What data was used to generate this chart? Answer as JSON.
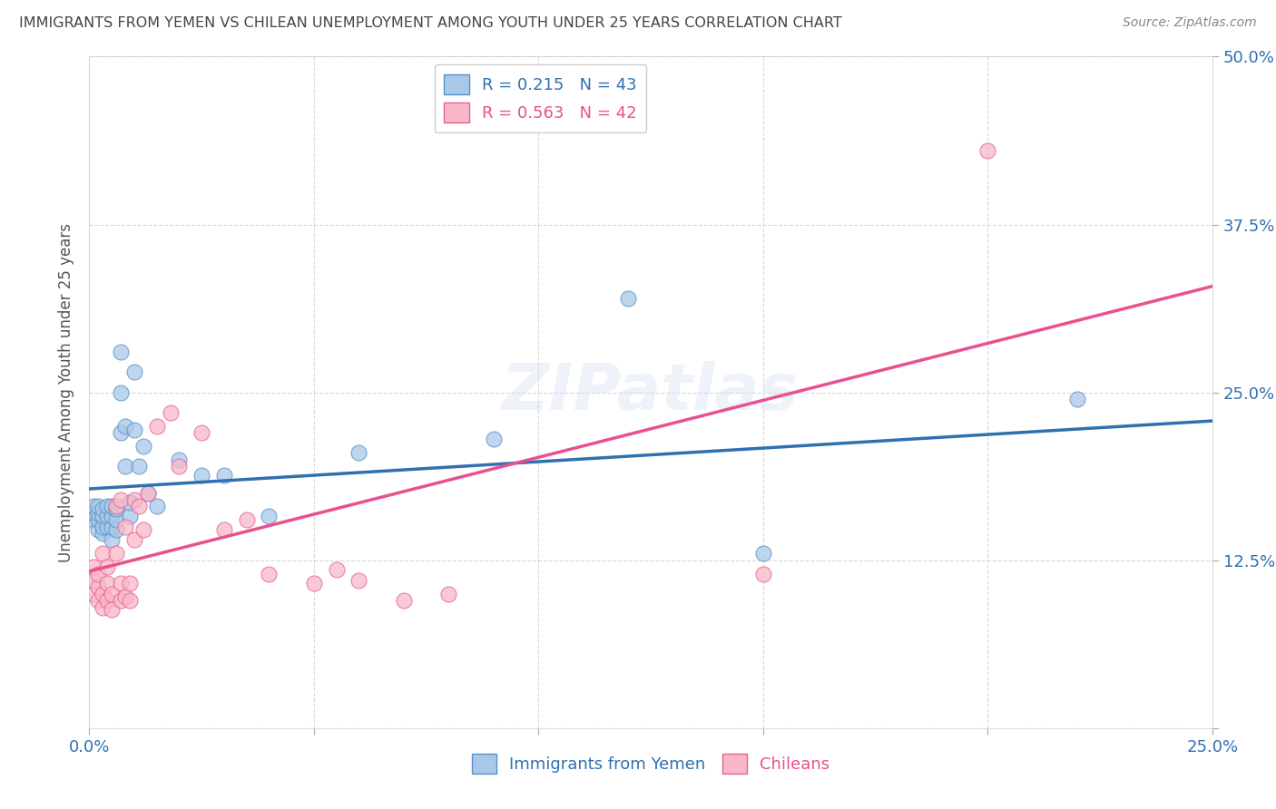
{
  "title": "IMMIGRANTS FROM YEMEN VS CHILEAN UNEMPLOYMENT AMONG YOUTH UNDER 25 YEARS CORRELATION CHART",
  "source": "Source: ZipAtlas.com",
  "ylabel": "Unemployment Among Youth under 25 years",
  "xlim": [
    0.0,
    0.25
  ],
  "ylim": [
    0.0,
    0.5
  ],
  "xticks": [
    0.0,
    0.05,
    0.1,
    0.15,
    0.2,
    0.25
  ],
  "yticks": [
    0.0,
    0.125,
    0.25,
    0.375,
    0.5
  ],
  "xticklabels": [
    "0.0%",
    "",
    "",
    "",
    "",
    "25.0%"
  ],
  "yticklabels_right": [
    "",
    "12.5%",
    "25.0%",
    "37.5%",
    "50.0%"
  ],
  "blue_color": "#a8c8e8",
  "pink_color": "#f8b8c8",
  "blue_edge_color": "#5590c8",
  "pink_edge_color": "#e86090",
  "blue_line_color": "#3070b0",
  "pink_line_color": "#e85090",
  "legend_text_color_blue": "#3070b0",
  "legend_text_color_pink": "#e85090",
  "title_color": "#444444",
  "R_blue": 0.215,
  "N_blue": 43,
  "R_pink": 0.563,
  "N_pink": 42,
  "blue_scatter_x": [
    0.001,
    0.001,
    0.001,
    0.002,
    0.002,
    0.002,
    0.002,
    0.003,
    0.003,
    0.003,
    0.003,
    0.004,
    0.004,
    0.004,
    0.005,
    0.005,
    0.005,
    0.005,
    0.006,
    0.006,
    0.006,
    0.007,
    0.007,
    0.007,
    0.008,
    0.008,
    0.009,
    0.009,
    0.01,
    0.01,
    0.011,
    0.012,
    0.013,
    0.015,
    0.02,
    0.025,
    0.03,
    0.04,
    0.06,
    0.09,
    0.12,
    0.15,
    0.22
  ],
  "blue_scatter_y": [
    0.155,
    0.16,
    0.165,
    0.148,
    0.155,
    0.16,
    0.165,
    0.145,
    0.15,
    0.158,
    0.163,
    0.15,
    0.158,
    0.165,
    0.14,
    0.15,
    0.158,
    0.165,
    0.148,
    0.155,
    0.163,
    0.22,
    0.25,
    0.28,
    0.195,
    0.225,
    0.158,
    0.168,
    0.222,
    0.265,
    0.195,
    0.21,
    0.175,
    0.165,
    0.2,
    0.188,
    0.188,
    0.158,
    0.205,
    0.215,
    0.32,
    0.13,
    0.245
  ],
  "pink_scatter_x": [
    0.001,
    0.001,
    0.001,
    0.002,
    0.002,
    0.002,
    0.003,
    0.003,
    0.003,
    0.004,
    0.004,
    0.004,
    0.005,
    0.005,
    0.006,
    0.006,
    0.007,
    0.007,
    0.007,
    0.008,
    0.008,
    0.009,
    0.009,
    0.01,
    0.01,
    0.011,
    0.012,
    0.013,
    0.015,
    0.018,
    0.02,
    0.025,
    0.03,
    0.035,
    0.04,
    0.05,
    0.055,
    0.06,
    0.07,
    0.08,
    0.15,
    0.2
  ],
  "pink_scatter_y": [
    0.1,
    0.11,
    0.12,
    0.095,
    0.105,
    0.115,
    0.09,
    0.1,
    0.13,
    0.095,
    0.108,
    0.12,
    0.088,
    0.1,
    0.13,
    0.165,
    0.095,
    0.108,
    0.17,
    0.098,
    0.15,
    0.095,
    0.108,
    0.14,
    0.17,
    0.165,
    0.148,
    0.175,
    0.225,
    0.235,
    0.195,
    0.22,
    0.148,
    0.155,
    0.115,
    0.108,
    0.118,
    0.11,
    0.095,
    0.1,
    0.115,
    0.43
  ],
  "watermark": "ZIPatlas",
  "background_color": "#ffffff",
  "grid_color": "#d0d0d0"
}
